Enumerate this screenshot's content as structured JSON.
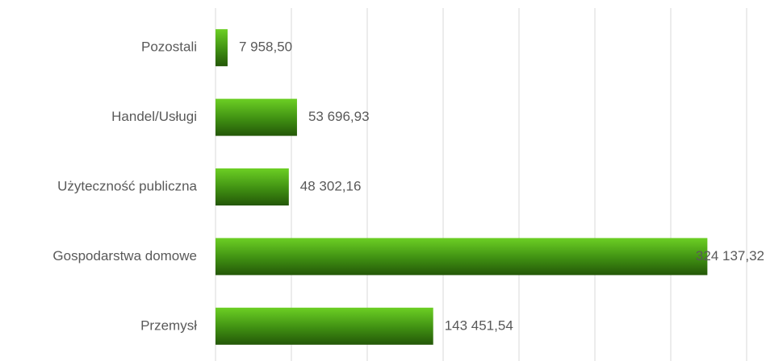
{
  "chart_data": {
    "type": "bar",
    "orientation": "horizontal",
    "categories": [
      "Pozostali",
      "Handel/Usługi",
      "Użyteczność publiczna",
      "Gospodarstwa domowe",
      "Przemysł"
    ],
    "values": [
      7958.5,
      53696.93,
      48302.16,
      324137.32,
      143451.54
    ],
    "value_labels": [
      "7 958,50",
      "53 696,93",
      "48 302,16",
      "324 137,32",
      "143 451,54"
    ],
    "color": "#3f8f12",
    "xlim": [
      0,
      350000
    ],
    "xticks": [
      0,
      50000,
      100000,
      150000,
      200000,
      250000,
      300000,
      350000
    ],
    "grid": true
  }
}
